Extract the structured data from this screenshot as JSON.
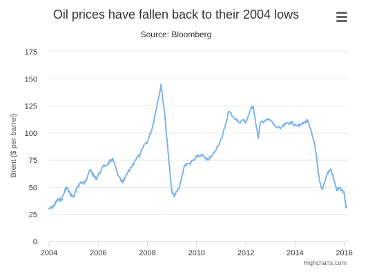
{
  "menu": {
    "icon": "hamburger-menu-icon"
  },
  "credits": "Highcharts.com",
  "colors": {
    "series": "#7cb5ec",
    "grid": "#e6e6e6",
    "axis": "#ccd6eb",
    "text": "#333333"
  },
  "chart_data": {
    "type": "line",
    "title": "Oil prices have fallen back to their 2004 lows",
    "subtitle": "Source: Bloomberg",
    "xlabel": "",
    "ylabel": "Brent ($ per barrel)",
    "xlim": [
      2004.0,
      2016.15
    ],
    "ylim": [
      0,
      175
    ],
    "x_ticks": [
      2004,
      2006,
      2008,
      2010,
      2012,
      2014,
      2016
    ],
    "y_ticks": [
      0,
      25,
      50,
      75,
      100,
      125,
      150,
      175
    ],
    "grid": true,
    "legend": "none",
    "series": [
      {
        "name": "",
        "x": [
          2004.0,
          2004.1,
          2004.2,
          2004.3,
          2004.4,
          2004.5,
          2004.6,
          2004.7,
          2004.8,
          2004.9,
          2005.0,
          2005.1,
          2005.2,
          2005.3,
          2005.4,
          2005.5,
          2005.6,
          2005.7,
          2005.8,
          2005.9,
          2006.0,
          2006.2,
          2006.4,
          2006.5,
          2006.6,
          2006.8,
          2007.0,
          2007.1,
          2007.3,
          2007.5,
          2007.7,
          2007.9,
          2008.0,
          2008.2,
          2008.35,
          2008.5,
          2008.55,
          2008.7,
          2008.85,
          2008.95,
          2009.0,
          2009.1,
          2009.3,
          2009.5,
          2009.7,
          2009.9,
          2010.0,
          2010.2,
          2010.4,
          2010.6,
          2010.8,
          2011.0,
          2011.15,
          2011.3,
          2011.5,
          2011.7,
          2011.9,
          2012.0,
          2012.2,
          2012.3,
          2012.5,
          2012.6,
          2012.8,
          2013.0,
          2013.2,
          2013.4,
          2013.6,
          2013.8,
          2014.0,
          2014.2,
          2014.4,
          2014.5,
          2014.6,
          2014.8,
          2014.95,
          2015.0,
          2015.1,
          2015.3,
          2015.45,
          2015.6,
          2015.7,
          2015.8,
          2015.9,
          2016.0,
          2016.05,
          2016.1
        ],
        "y": [
          30,
          31,
          33,
          37,
          39,
          38,
          44,
          50,
          46,
          43,
          41,
          47,
          52,
          55,
          53,
          57,
          63,
          66,
          61,
          58,
          61,
          69,
          72,
          74,
          76,
          61,
          54,
          59,
          67,
          75,
          80,
          90,
          92,
          105,
          122,
          138,
          145,
          118,
          80,
          55,
          45,
          42,
          50,
          70,
          72,
          75,
          78,
          80,
          75,
          78,
          85,
          95,
          105,
          120,
          115,
          110,
          112,
          110,
          122,
          125,
          95,
          110,
          112,
          112,
          106,
          104,
          108,
          110,
          108,
          107,
          110,
          112,
          105,
          90,
          62,
          55,
          48,
          62,
          67,
          55,
          47,
          49,
          47,
          44,
          35,
          31
        ]
      }
    ]
  }
}
